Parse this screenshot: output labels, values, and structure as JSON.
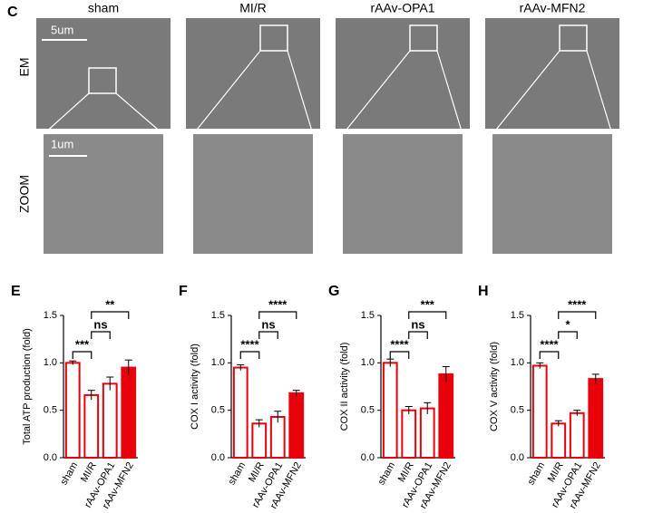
{
  "figure": {
    "panel": "C",
    "columns": [
      "sham",
      "MI/R",
      "rAAv-OPA1",
      "rAAv-MFN2"
    ],
    "rows": [
      "EM",
      "ZOOM"
    ],
    "scale_bars": [
      "5um",
      "1um"
    ]
  },
  "chart_data": [
    {
      "type": "bar",
      "panel": "E",
      "y_label": "Total ATP production (fold)",
      "categories": [
        "sham",
        "MI/R",
        "rAAv-OPA1",
        "rAAv-MFN2"
      ],
      "values": [
        1.0,
        0.66,
        0.78,
        0.95
      ],
      "errors": [
        0.02,
        0.05,
        0.07,
        0.08
      ],
      "bar_fills": [
        "#ffffff",
        "#ffffff",
        "#ffffff",
        "#e8000b"
      ],
      "edge_color": "#e8000b",
      "ylim": [
        0,
        1.5
      ],
      "yticks": [
        {
          "value": 0,
          "label": "0.0"
        },
        0.5,
        {
          "value": 1,
          "label": "1.0"
        },
        1.5
      ],
      "annotations": [
        {
          "label": "***",
          "between": [
            "sham",
            "MI/R"
          ]
        },
        {
          "label": "ns",
          "between": [
            "MI/R",
            "rAAv-OPA1"
          ]
        },
        {
          "label": "**",
          "between": [
            "MI/R",
            "rAAv-MFN2"
          ]
        }
      ]
    },
    {
      "type": "bar",
      "panel": "F",
      "y_label": "COX I activity (fold)",
      "categories": [
        "sham",
        "MI/R",
        "rAAv-OPA1",
        "rAAv-MFN2"
      ],
      "values": [
        0.95,
        0.36,
        0.43,
        0.68
      ],
      "errors": [
        0.03,
        0.04,
        0.06,
        0.03
      ],
      "bar_fills": [
        "#ffffff",
        "#ffffff",
        "#ffffff",
        "#e8000b"
      ],
      "edge_color": "#e8000b",
      "ylim": [
        0,
        1.5
      ],
      "yticks": [
        {
          "value": 0,
          "label": "0.0"
        },
        0.5,
        {
          "value": 1,
          "label": "1.0"
        },
        1.5
      ],
      "annotations": [
        {
          "label": "****",
          "between": [
            "sham",
            "MI/R"
          ]
        },
        {
          "label": "ns",
          "between": [
            "MI/R",
            "rAAv-OPA1"
          ]
        },
        {
          "label": "****",
          "between": [
            "MI/R",
            "rAAv-MFN2"
          ]
        }
      ]
    },
    {
      "type": "bar",
      "panel": "G",
      "y_label": "COX II activity (fold)",
      "categories": [
        "sham",
        "MI/R",
        "rAAv-OPA1",
        "rAAv-MFN2"
      ],
      "values": [
        1.0,
        0.5,
        0.52,
        0.88
      ],
      "errors": [
        0.04,
        0.04,
        0.06,
        0.08
      ],
      "bar_fills": [
        "#ffffff",
        "#ffffff",
        "#ffffff",
        "#e8000b"
      ],
      "edge_color": "#e8000b",
      "ylim": [
        0,
        1.5
      ],
      "yticks": [
        {
          "value": 0,
          "label": "0.0"
        },
        0.5,
        {
          "value": 1,
          "label": "1.0"
        },
        1.5
      ],
      "annotations": [
        {
          "label": "****",
          "between": [
            "sham",
            "MI/R"
          ]
        },
        {
          "label": "ns",
          "between": [
            "MI/R",
            "rAAv-OPA1"
          ]
        },
        {
          "label": "***",
          "between": [
            "MI/R",
            "rAAv-MFN2"
          ]
        }
      ]
    },
    {
      "type": "bar",
      "panel": "H",
      "y_label": "COX V activity (fold)",
      "categories": [
        "sham",
        "MI/R",
        "rAAv-OPA1",
        "rAAv-MFN2"
      ],
      "values": [
        0.97,
        0.36,
        0.47,
        0.83
      ],
      "errors": [
        0.03,
        0.03,
        0.03,
        0.05
      ],
      "bar_fills": [
        "#ffffff",
        "#ffffff",
        "#ffffff",
        "#e8000b"
      ],
      "edge_color": "#e8000b",
      "ylim": [
        0,
        1.5
      ],
      "yticks": [
        {
          "value": 0,
          "label": "0.0"
        },
        0.5,
        {
          "value": 1,
          "label": "1.0"
        },
        1.5
      ],
      "annotations": [
        {
          "label": "****",
          "between": [
            "sham",
            "MI/R"
          ]
        },
        {
          "label": "*",
          "between": [
            "MI/R",
            "rAAv-OPA1"
          ]
        },
        {
          "label": "****",
          "between": [
            "MI/R",
            "rAAv-MFN2"
          ]
        }
      ]
    }
  ]
}
